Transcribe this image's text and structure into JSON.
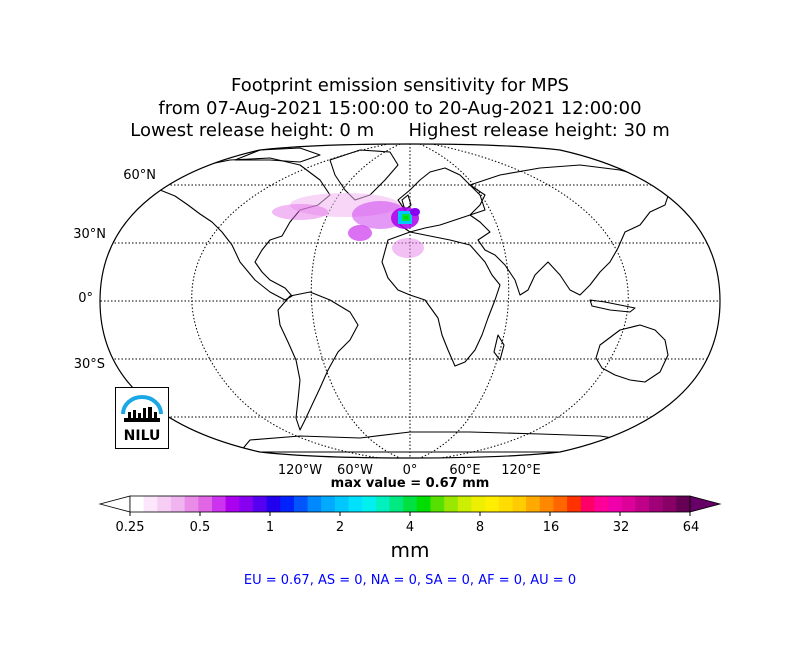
{
  "title": {
    "line1": "Footprint emission sensitivity for MPS",
    "line2": "from 07-Aug-2021 15:00:00 to 20-Aug-2021 12:00:00",
    "line3": "Lowest release height: 0 m      Highest release height: 30 m"
  },
  "chart_data": {
    "type": "heatmap",
    "projection": "Robinson (world)",
    "lat_labels": [
      "60°N",
      "30°N",
      "0°",
      "30°S"
    ],
    "lon_labels": [
      "120°W",
      "60°W",
      "0°",
      "60°E",
      "120°E"
    ],
    "max_value_label": "max value = 0.67 mm",
    "max_value": 0.67,
    "colorbar": {
      "ticks": [
        "0.25",
        "0.5",
        "1",
        "2",
        "4",
        "8",
        "16",
        "32",
        "64"
      ],
      "scale": "log",
      "range": [
        0.25,
        64
      ],
      "extend": "both",
      "colors": [
        "#ffffff",
        "#fbe6fb",
        "#f5cdf5",
        "#f0b4f0",
        "#e88ce8",
        "#e066e6",
        "#cc33ee",
        "#aa00ee",
        "#8800f0",
        "#5500f0",
        "#2200ee",
        "#0022ff",
        "#0055ff",
        "#0088ff",
        "#00aaff",
        "#00c8ff",
        "#00e0ff",
        "#00f0f0",
        "#00f0c0",
        "#00e880",
        "#00e040",
        "#00dd00",
        "#55e000",
        "#99e600",
        "#ccee00",
        "#eeee00",
        "#ffee00",
        "#ffdd00",
        "#ffcc00",
        "#ffaa00",
        "#ff8800",
        "#ff6600",
        "#ff3300",
        "#ff0066",
        "#ff0099",
        "#f000aa",
        "#dd0099",
        "#c00088",
        "#a00077",
        "#880066",
        "#660055"
      ],
      "under_color": "#ffffff",
      "over_color": "#660066"
    },
    "unit": "mm"
  },
  "summary": "EU = 0.67,  AS = 0,  NA = 0,  SA = 0,  AF = 0,  AU = 0",
  "logo": {
    "text": "NILU",
    "arc_color": "#1aa7e6"
  }
}
